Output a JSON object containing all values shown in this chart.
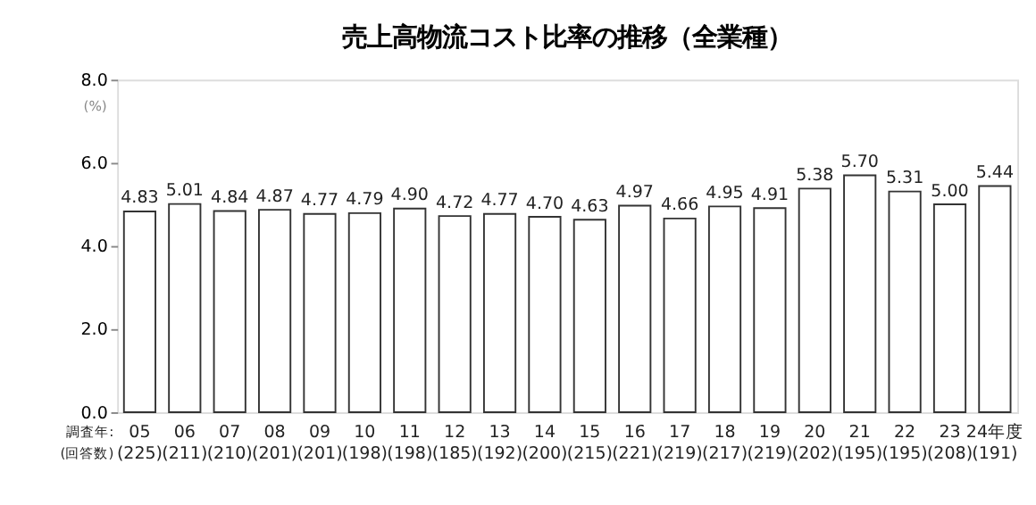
{
  "chart_data": {
    "type": "bar",
    "title": "売上高物流コスト比率の推移（全業種）",
    "ylabel": "(%)",
    "categories": [
      "05\n(225)",
      "06\n(211)",
      "07\n(210)",
      "08\n(201)",
      "09\n(201)",
      "10\n(198)",
      "11\n(198)",
      "12\n(185)",
      "13\n(192)",
      "14\n(200)",
      "15\n(215)",
      "16\n(221)",
      "17\n(219)",
      "18\n(217)",
      "19\n(219)",
      "20\n(202)",
      "21\n(195)",
      "22\n(195)",
      "23\n(208)",
      "24年度\n(191)"
    ],
    "values": [
      4.83,
      5.01,
      4.84,
      4.87,
      4.77,
      4.79,
      4.9,
      4.72,
      4.77,
      4.7,
      4.63,
      4.97,
      4.66,
      4.95,
      4.91,
      5.38,
      5.7,
      5.31,
      5.0,
      5.44
    ],
    "value_labels": [
      "4.83",
      "5.01",
      "4.84",
      "4.87",
      "4.77",
      "4.79",
      "4.90",
      "4.72",
      "4.77",
      "4.70",
      "4.63",
      "4.97",
      "4.66",
      "4.95",
      "4.91",
      "5.38",
      "5.70",
      "5.31",
      "5.00",
      "5.44"
    ],
    "color": "#ffffff",
    "ylim": [
      0,
      8
    ],
    "yticks": [
      {
        "value": 0,
        "label": "0.0"
      },
      {
        "value": 2,
        "label": "2.0"
      },
      {
        "value": 4,
        "label": "4.0"
      },
      {
        "value": 6,
        "label": "6.0"
      },
      {
        "value": 8,
        "label": "8.0"
      }
    ],
    "annotations": [
      "調査年:",
      "(回答数)"
    ],
    "grid": false
  }
}
